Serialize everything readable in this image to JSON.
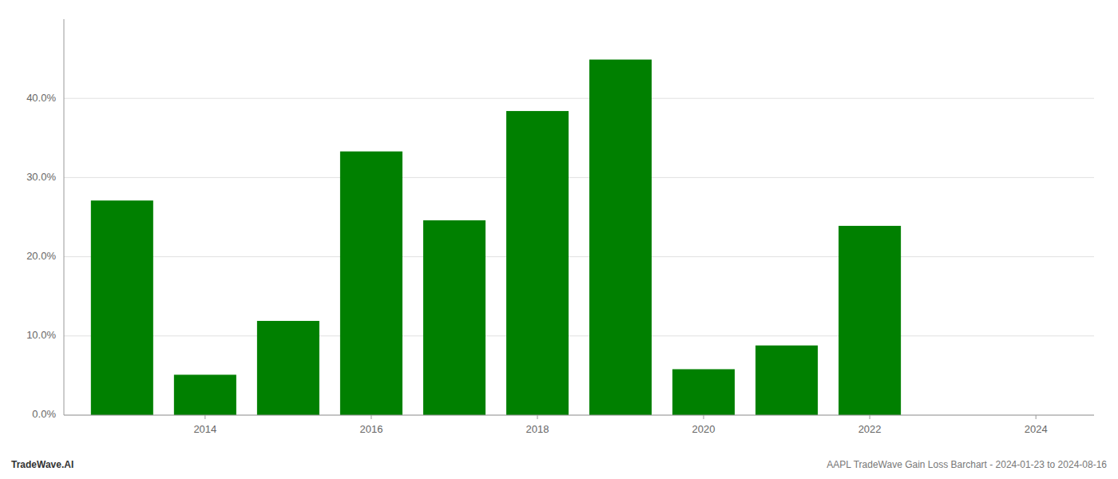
{
  "chart_data": {
    "type": "bar",
    "x": [
      2013,
      2014,
      2015,
      2016,
      2017,
      2018,
      2019,
      2020,
      2021,
      2022,
      2023
    ],
    "values": [
      0.271,
      0.051,
      0.119,
      0.333,
      0.246,
      0.384,
      0.449,
      0.058,
      0.088,
      0.239,
      null
    ],
    "color": "#008000",
    "xlim": [
      2012.3,
      2024.7
    ],
    "xticks": [
      2014,
      2016,
      2018,
      2020,
      2022,
      2024
    ],
    "ylim": [
      0,
      0.5
    ],
    "yticks": [
      {
        "value": 0.0,
        "label": "0.0%"
      },
      {
        "value": 0.1,
        "label": "10.0%"
      },
      {
        "value": 0.2,
        "label": "20.0%"
      },
      {
        "value": 0.3,
        "label": "30.0%"
      },
      {
        "value": 0.4,
        "label": "40.0%"
      }
    ],
    "grid": true,
    "annotations": [
      "TradeWave.AI",
      "AAPL TradeWave Gain Loss Barchart - 2024-01-23 to 2024-08-16"
    ]
  }
}
